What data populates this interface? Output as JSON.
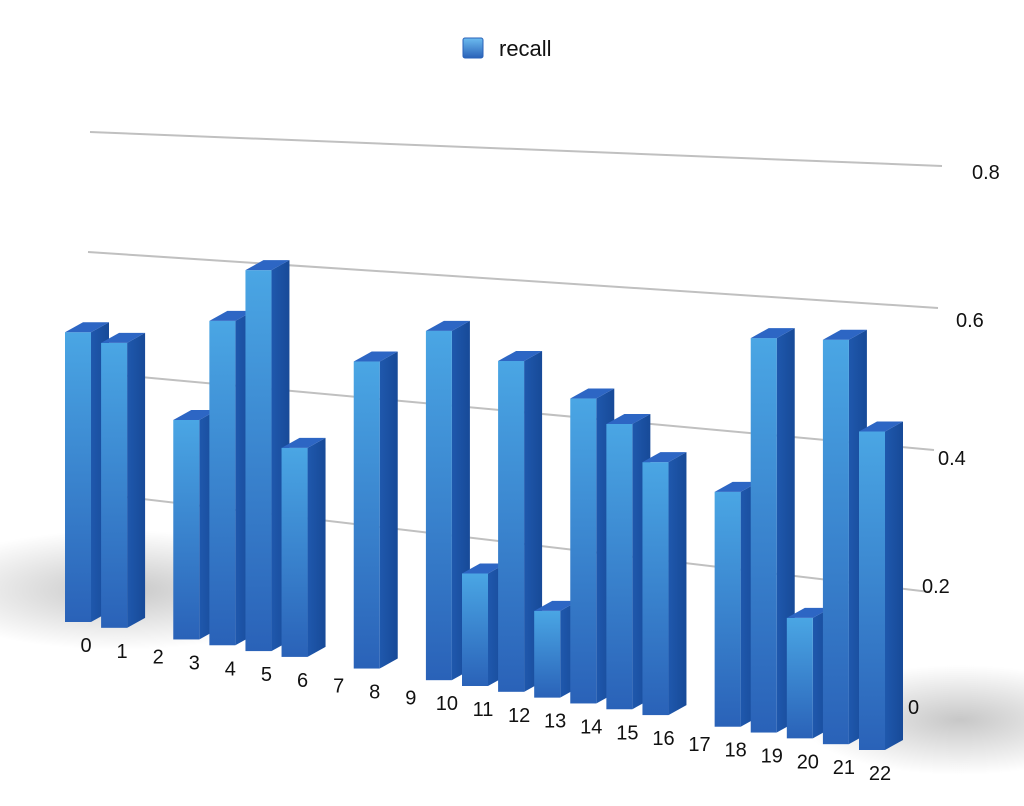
{
  "chart_data": {
    "type": "bar",
    "categories": [
      "0",
      "1",
      "2",
      "3",
      "4",
      "5",
      "6",
      "7",
      "8",
      "9",
      "10",
      "11",
      "12",
      "13",
      "14",
      "15",
      "16",
      "17",
      "18",
      "19",
      "20",
      "21",
      "22"
    ],
    "series": [
      {
        "name": "recall",
        "values": [
          0.61,
          0.59,
          0,
          0.44,
          0.64,
          0.74,
          0.4,
          0,
          0.57,
          0,
          0.63,
          0.2,
          0.58,
          0.15,
          0.52,
          0.48,
          0.42,
          0,
          0.38,
          0.63,
          0.19,
          0.63,
          0.49
        ]
      }
    ],
    "y_ticks": [
      "0",
      "0.2",
      "0.4",
      "0.6",
      "0.8"
    ],
    "ylim": [
      0,
      0.8
    ],
    "grid": true,
    "legend_position": "top-center",
    "colors": {
      "bar": "#3b8fd6",
      "bar_dark": "#2a62b8",
      "bar_top": "#2d66c4",
      "grid": "#c0c0c0"
    }
  }
}
